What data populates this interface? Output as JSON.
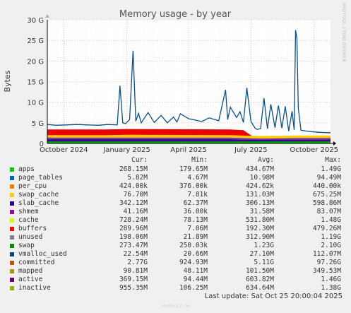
{
  "chart_data": {
    "type": "area",
    "title": "Memory usage - by year",
    "ylabel": "Bytes",
    "side_label": "RRDTOOL / TOBI OETIKER",
    "ylim": [
      0,
      30000000000
    ],
    "y_ticks": [
      {
        "value": 0,
        "label": "0"
      },
      {
        "value": 5000000000,
        "label": "5 G"
      },
      {
        "value": 10000000000,
        "label": "10 G"
      },
      {
        "value": 15000000000,
        "label": "15 G"
      },
      {
        "value": 20000000000,
        "label": "20 G"
      },
      {
        "value": 25000000000,
        "label": "25 G"
      },
      {
        "value": 30000000000,
        "label": "30 G"
      }
    ],
    "x_range": [
      "2024-09-07",
      "2025-10-25"
    ],
    "x_ticks": [
      {
        "date": "2024-10-01",
        "label": "October 2024"
      },
      {
        "date": "2025-01-01",
        "label": "January 2025"
      },
      {
        "date": "2025-04-01",
        "label": "April 2025"
      },
      {
        "date": "2025-07-01",
        "label": "July 2025"
      },
      {
        "date": "2025-10-01",
        "label": "October 2025"
      }
    ],
    "committed_series": {
      "dates": [
        "2024-09-07",
        "2024-09-20",
        "2024-10-05",
        "2024-10-20",
        "2024-11-05",
        "2024-11-20",
        "2024-12-05",
        "2024-12-18",
        "2024-12-22",
        "2024-12-26",
        "2024-12-30",
        "2025-01-05",
        "2025-01-10",
        "2025-01-14",
        "2025-01-18",
        "2025-01-22",
        "2025-02-01",
        "2025-02-10",
        "2025-02-20",
        "2025-03-01",
        "2025-03-10",
        "2025-03-15",
        "2025-03-20",
        "2025-04-01",
        "2025-04-10",
        "2025-04-20",
        "2025-05-01",
        "2025-05-15",
        "2025-05-25",
        "2025-05-28",
        "2025-06-01",
        "2025-06-10",
        "2025-06-15",
        "2025-06-20",
        "2025-06-25",
        "2025-07-01",
        "2025-07-07",
        "2025-07-10",
        "2025-07-15",
        "2025-07-20",
        "2025-07-25",
        "2025-07-30",
        "2025-08-05",
        "2025-08-10",
        "2025-08-15",
        "2025-08-20",
        "2025-08-25",
        "2025-08-30",
        "2025-09-02",
        "2025-09-04",
        "2025-09-06",
        "2025-09-08",
        "2025-09-12",
        "2025-09-20",
        "2025-10-01",
        "2025-10-10",
        "2025-10-20",
        "2025-10-25"
      ],
      "values": [
        4.6,
        4.4,
        4.5,
        4.6,
        4.5,
        4.4,
        4.6,
        4.5,
        14.0,
        5.0,
        4.8,
        5.8,
        22.5,
        5.4,
        7.3,
        5.0,
        7.5,
        5.1,
        6.8,
        5.0,
        6.4,
        5.2,
        7.2,
        6.0,
        5.7,
        5.3,
        6.2,
        5.5,
        13.0,
        5.8,
        8.8,
        6.3,
        7.7,
        5.1,
        13.5,
        5.3,
        3.7,
        3.4,
        3.6,
        11.0,
        3.6,
        9.5,
        3.8,
        9.2,
        3.7,
        9.0,
        3.0,
        7.8,
        3.3,
        27.5,
        25.5,
        8.5,
        3.2,
        3.0,
        2.8,
        2.7,
        2.6,
        2.6
      ]
    },
    "stack_bands": {
      "dates": [
        "2024-09-07",
        "2024-12-01",
        "2025-01-01",
        "2025-06-01",
        "2025-06-20",
        "2025-07-15",
        "2025-09-01",
        "2025-10-25"
      ],
      "swap_top": [
        3.4,
        3.4,
        3.5,
        3.4,
        3.2,
        0.4,
        0.3,
        0.3
      ],
      "unused_top": [
        2.0,
        2.0,
        2.1,
        2.0,
        1.9,
        1.8,
        1.9,
        1.9
      ],
      "buffers_top": [
        1.4,
        1.4,
        1.4,
        1.4,
        1.3,
        1.2,
        1.3,
        1.3
      ],
      "cache_top": [
        1.0,
        1.0,
        1.0,
        1.0,
        0.9,
        0.9,
        0.9,
        0.9
      ],
      "apps_top": [
        0.5,
        0.5,
        0.5,
        0.5,
        0.5,
        0.5,
        0.5,
        0.5
      ]
    },
    "legend_header": {
      "cur": "Cur:",
      "min": "Min:",
      "avg": "Avg:",
      "max": "Max:"
    },
    "legend": [
      {
        "name": "apps",
        "color": "#00cc00",
        "cur": "268.15M",
        "min": "179.65M",
        "avg": "434.67M",
        "max": "1.49G"
      },
      {
        "name": "page_tables",
        "color": "#0066b3",
        "cur": "5.82M",
        "min": "4.67M",
        "avg": "10.98M",
        "max": "94.49M"
      },
      {
        "name": "per_cpu",
        "color": "#ff8000",
        "cur": "424.00k",
        "min": "376.00k",
        "avg": "424.62k",
        "max": "440.00k"
      },
      {
        "name": "swap_cache",
        "color": "#ffcc00",
        "cur": "76.70M",
        "min": "7.81k",
        "avg": "131.03M",
        "max": "675.25M"
      },
      {
        "name": "slab_cache",
        "color": "#330099",
        "cur": "342.12M",
        "min": "62.37M",
        "avg": "306.13M",
        "max": "598.86M"
      },
      {
        "name": "shmem",
        "color": "#990099",
        "cur": "41.16M",
        "min": "36.00k",
        "avg": "31.58M",
        "max": "83.07M"
      },
      {
        "name": "cache",
        "color": "#ccff00",
        "cur": "728.24M",
        "min": "78.13M",
        "avg": "531.80M",
        "max": "1.48G"
      },
      {
        "name": "buffers",
        "color": "#ff0000",
        "cur": "289.96M",
        "min": "7.06M",
        "avg": "192.30M",
        "max": "479.26M"
      },
      {
        "name": "unused",
        "color": "#808080",
        "cur": "198.06M",
        "min": "21.89M",
        "avg": "312.90M",
        "max": "1.19G"
      },
      {
        "name": "swap",
        "color": "#008f00",
        "cur": "273.47M",
        "min": "250.03k",
        "avg": "1.23G",
        "max": "2.10G"
      },
      {
        "name": "vmalloc_used",
        "color": "#00487d",
        "cur": "22.54M",
        "min": "20.66M",
        "avg": "27.10M",
        "max": "112.07M"
      },
      {
        "name": "committed",
        "color": "#b35a00",
        "cur": "2.77G",
        "min": "924.93M",
        "avg": "5.11G",
        "max": "97.26G"
      },
      {
        "name": "mapped",
        "color": "#b38f00",
        "cur": "90.81M",
        "min": "48.11M",
        "avg": "101.50M",
        "max": "349.53M"
      },
      {
        "name": "active",
        "color": "#6b006b",
        "cur": "369.15M",
        "min": "94.44M",
        "avg": "603.82M",
        "max": "1.46G"
      },
      {
        "name": "inactive",
        "color": "#8fb300",
        "cur": "955.35M",
        "min": "106.25M",
        "avg": "634.64M",
        "max": "1.38G"
      }
    ]
  },
  "footer": "Last update: Sat Oct 25 20:00:04 2025",
  "watermark": "Munin 2.0.76"
}
